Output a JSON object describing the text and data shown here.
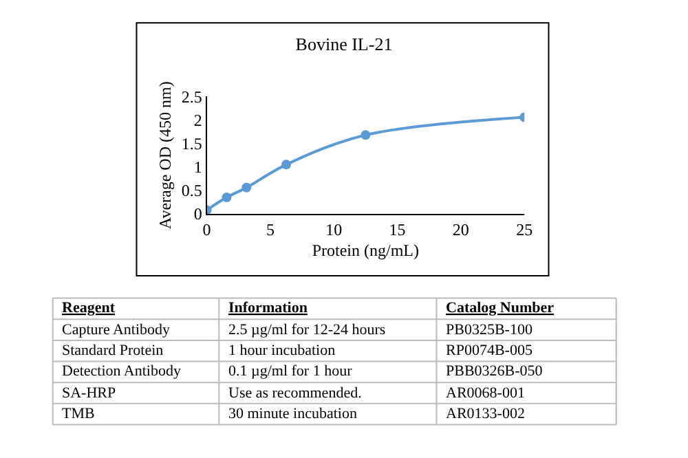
{
  "chart_data": {
    "type": "line",
    "title": "Bovine IL-21",
    "xlabel": "Protein (ng/mL)",
    "ylabel": "Average OD (450 nm)",
    "x": [
      0,
      1.5625,
      3.125,
      6.25,
      12.5,
      25
    ],
    "series": [
      {
        "color": "#5b9bd5",
        "values": [
          0.08,
          0.35,
          0.56,
          1.05,
          1.68,
          2.06
        ]
      }
    ],
    "xlim": [
      0,
      25
    ],
    "xticks": [
      0,
      5,
      10,
      15,
      20,
      25
    ],
    "ylim": [
      0,
      2.5
    ],
    "yticks": [
      0,
      0.5,
      1,
      1.5,
      2,
      2.5
    ],
    "marker": "circle",
    "line_style": "solid",
    "annotations": [
      "Reagent",
      "Information",
      "Catalog Number",
      "Capture Antibody",
      "2.5 µg/ml for 12-24 hours",
      "PB0325B-100",
      "Standard Protein",
      "1 hour incubation",
      "RP0074B-005",
      "Detection Antibody",
      "0.1 µg/ml for 1 hour",
      "PBB0326B-050",
      "SA-HRP",
      "Use as recommended.",
      "AR0068-001",
      "TMB",
      "30 minute incubation",
      "AR0133-002"
    ]
  }
}
